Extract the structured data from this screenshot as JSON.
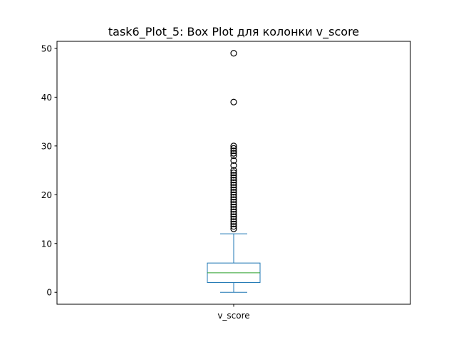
{
  "chart_data": {
    "type": "box",
    "title": "task6_Plot_5: Box Plot для колонки v_score",
    "xlabel": "",
    "ylabel": "",
    "categories": [
      "v_score"
    ],
    "ylim": [
      -2.45,
      51.45
    ],
    "yticks": [
      0,
      10,
      20,
      30,
      40,
      50
    ],
    "grid": false,
    "boxes": [
      {
        "name": "v_score",
        "whisker_low": 0,
        "q1": 2,
        "median": 4,
        "q3": 6,
        "whisker_high": 12,
        "outliers": [
          13,
          13.5,
          14,
          14.5,
          15,
          15.5,
          16,
          16.5,
          17,
          17.5,
          18,
          18.5,
          19,
          19.5,
          20,
          20.5,
          21,
          21.5,
          22,
          22.5,
          23,
          23.5,
          24,
          24.5,
          25,
          26,
          27,
          28,
          28.5,
          29,
          29.5,
          30,
          39,
          49
        ]
      }
    ],
    "colors": {
      "box": "#1f77b4",
      "median": "#2ca02c",
      "outlier": "#000000"
    }
  }
}
